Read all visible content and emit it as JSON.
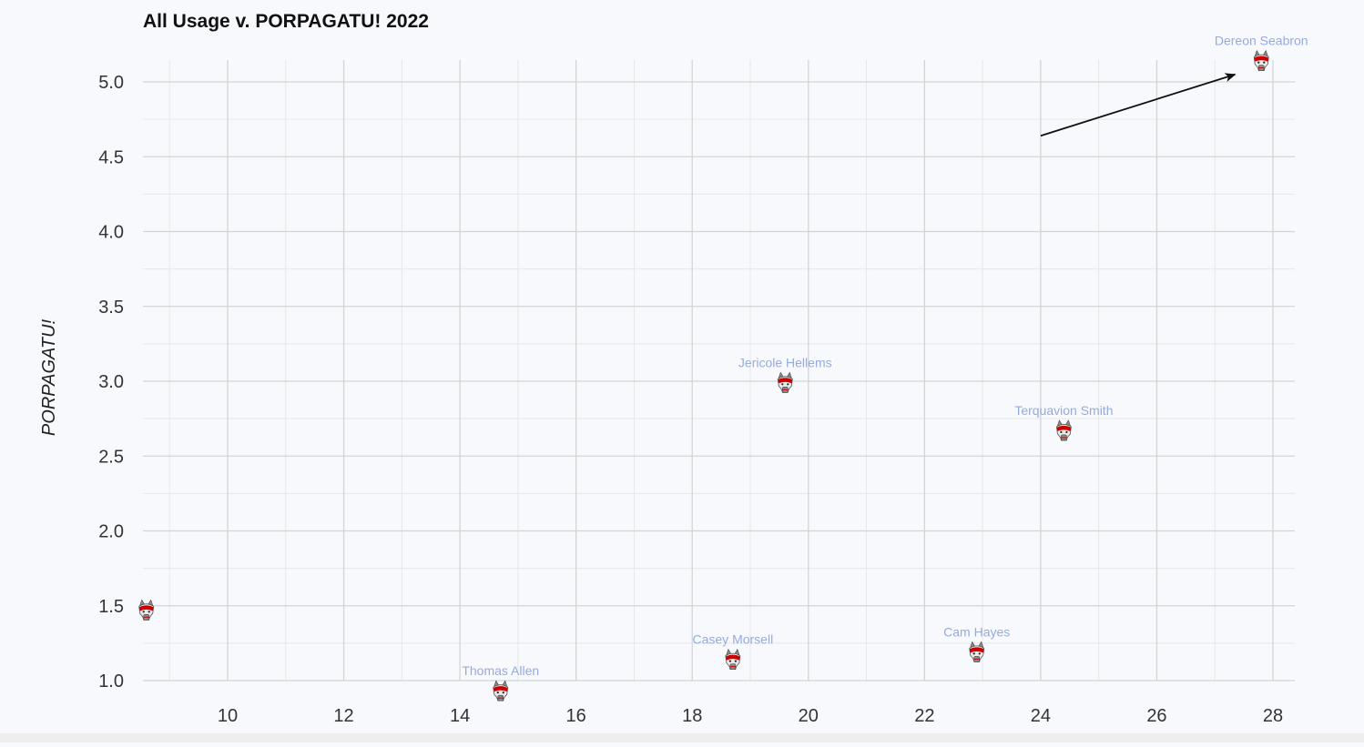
{
  "chart_data": {
    "type": "scatter",
    "title": "All Usage v. PORPAGATU! 2022",
    "xlabel": "",
    "ylabel": "PORPAGATU!",
    "xlim": [
      8.5,
      28.4
    ],
    "ylim": [
      0.97,
      5.15
    ],
    "x_ticks": [
      10,
      12,
      14,
      16,
      18,
      20,
      22,
      24,
      26,
      28
    ],
    "y_ticks": [
      1.0,
      1.5,
      2.0,
      2.5,
      3.0,
      3.5,
      4.0,
      4.5,
      5.0
    ],
    "y_tick_labels": [
      "1.0",
      "1.5",
      "2.0",
      "2.5",
      "3.0",
      "3.5",
      "4.0",
      "4.5",
      "5.0"
    ],
    "grid": true,
    "marker": "wolf-logo-icon",
    "points": [
      {
        "label": "",
        "x": 8.6,
        "y": 1.46
      },
      {
        "label": "Thomas Allen",
        "x": 14.7,
        "y": 0.92
      },
      {
        "label": "Casey Morsell",
        "x": 18.7,
        "y": 1.13
      },
      {
        "label": "Jericole Hellems",
        "x": 19.6,
        "y": 2.98
      },
      {
        "label": "Cam Hayes",
        "x": 22.9,
        "y": 1.18
      },
      {
        "label": "Terquavion Smith",
        "x": 24.4,
        "y": 2.66
      },
      {
        "label": "Dereon Seabron",
        "x": 27.8,
        "y": 5.13
      }
    ],
    "annotations": [
      {
        "type": "arrow",
        "from": {
          "x": 24.0,
          "y": 4.64
        },
        "to": {
          "x": 27.35,
          "y": 5.05
        },
        "color": "#111111"
      }
    ],
    "colors": {
      "background": "#f8f9fc",
      "label": "#94abe0",
      "grid_major": "#d4d4d4",
      "grid_minor": "#e7e7ea",
      "logo_red": "#cc0000",
      "logo_gray": "#8a8a8a"
    }
  }
}
